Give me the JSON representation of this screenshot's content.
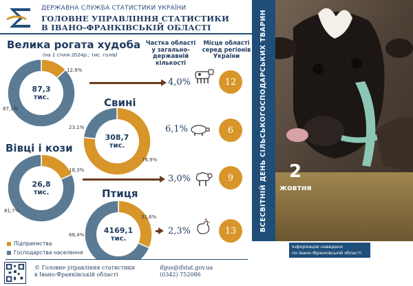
{
  "header": {
    "org_small": "ДЕРЖАВНА СЛУЖБА СТАТИСТИКИ УКРАЇНИ",
    "org_line1": "ГОЛОВНЕ УПРАВЛІННЯ СТАТИСТИКИ",
    "org_line2": "В ІВАНО-ФРАНКІВСЬКІЙ ОБЛАСТІ"
  },
  "columns": {
    "share_head": [
      "Частка області",
      "у загально-",
      "державній",
      "кількості"
    ],
    "rank_head": [
      "Місце області",
      "серед регіонів",
      "України"
    ]
  },
  "main_title": "Велика рогата худоба",
  "subtitle": "(на 1 січня 2024р.; тис. голів)",
  "colors": {
    "enterprises": "#d8952a",
    "households": "#5b7b94",
    "navy": "#1f4e79"
  },
  "sections": [
    {
      "title": "Велика рогата худоба",
      "center_value": "87,3",
      "unit": "тис.",
      "enterprise_pct": "12,9%",
      "household_pct": "87,1%",
      "enterprise_share": 0.129,
      "share": "4,0%",
      "rank": "12",
      "icon": "cow-icon"
    },
    {
      "title": "Свині",
      "center_value": "308,7",
      "unit": "тис.",
      "enterprise_pct": "76,9%",
      "household_pct": "23,1%",
      "enterprise_share": 0.769,
      "share": "6,1%",
      "rank": "6",
      "icon": "pig-icon"
    },
    {
      "title": "Вівці і кози",
      "center_value": "26,8",
      "unit": "тис.",
      "enterprise_pct": "18,3%",
      "household_pct": "81,7%",
      "enterprise_share": 0.183,
      "share": "3,0%",
      "rank": "9",
      "icon": "sheep-icon"
    },
    {
      "title": "Птиця",
      "center_value": "4169,1",
      "unit": "тис.",
      "enterprise_pct": "31,6%",
      "household_pct": "68,4%",
      "enterprise_share": 0.316,
      "share": "2,3%",
      "rank": "13",
      "icon": "chicken-icon"
    }
  ],
  "legend": {
    "enterprises": "Підприємства",
    "households": "Господарства населення"
  },
  "footer": {
    "copyright_line1": "© Головне управління статистики",
    "copyright_line2": "в Івано-Франківській області",
    "email": "ifgus@ifstat.gov.ua",
    "phone": "(0342) 752086"
  },
  "banner": {
    "vertical_text": "ВСЕСВІТНІЙ ДЕНЬ СІЛЬСЬКОГОСПОДАРСЬКИХ ТВАРИН",
    "day": "2",
    "month": "жовтня",
    "info": [
      "Інформацію наведено",
      "по Івано-Франківській області"
    ]
  }
}
